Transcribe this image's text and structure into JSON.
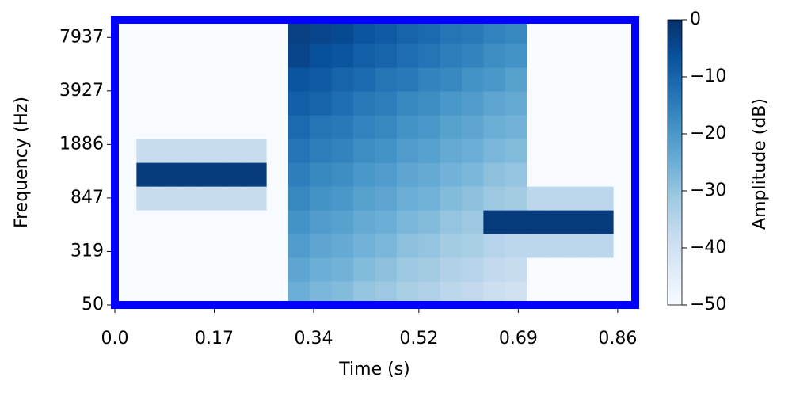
{
  "chart_data": {
    "type": "heatmap",
    "xlabel": "Time (s)",
    "ylabel": "Frequency (Hz)",
    "colorbar_label": "Amplitude (dB)",
    "xlim": [
      0,
      0.89
    ],
    "xticks": [
      {
        "value": 0,
        "label": "0.0"
      },
      0.17,
      0.34,
      0.52,
      0.69,
      0.86
    ],
    "ylim": [
      0,
      5.33
    ],
    "yticks": [
      {
        "value": 0,
        "label": "50"
      },
      {
        "value": 1,
        "label": "319"
      },
      {
        "value": 2,
        "label": "847"
      },
      {
        "value": 3,
        "label": "1886"
      },
      {
        "value": 4,
        "label": "3927"
      },
      {
        "value": 5,
        "label": "7937"
      }
    ],
    "zlim": [
      -50,
      0
    ],
    "zticks": [
      {
        "value": 0,
        "label": "0"
      },
      {
        "value": -10,
        "label": "−10"
      },
      {
        "value": -20,
        "label": "−20"
      },
      {
        "value": -30,
        "label": "−30"
      },
      {
        "value": -40,
        "label": "−40"
      },
      {
        "value": -50,
        "label": "−50"
      }
    ],
    "colormap": [
      "#f7fbff",
      "#deebf7",
      "#c6dbef",
      "#9ecae1",
      "#6baed6",
      "#4292c6",
      "#2171b5",
      "#08519c",
      "#08306b"
    ],
    "frame_color": "#0000ff",
    "z": [
      [
        -50,
        -50,
        -50,
        -50,
        -50,
        -50,
        -50,
        -50,
        -25,
        -27,
        -28,
        -30,
        -31,
        -33,
        -34,
        -36,
        -37,
        -39,
        -40,
        -50,
        -50,
        -50,
        -50,
        -50
      ],
      [
        -50,
        -50,
        -50,
        -50,
        -50,
        -50,
        -50,
        -50,
        -23,
        -25,
        -26,
        -28,
        -29,
        -31,
        -32,
        -34,
        -35,
        -37,
        -38,
        -50,
        -50,
        -50,
        -50,
        -50
      ],
      [
        -50,
        -50,
        -50,
        -50,
        -50,
        -50,
        -50,
        -50,
        -21,
        -23,
        -24,
        -26,
        -27,
        -29,
        -30,
        -32,
        -33,
        -35,
        -36,
        -36,
        -36,
        -36,
        -36,
        -50
      ],
      [
        -50,
        -50,
        -50,
        -50,
        -50,
        -50,
        -50,
        -50,
        -19,
        -21,
        -22,
        -24,
        -25,
        -27,
        -28,
        -30,
        -31,
        -2,
        -2,
        -2,
        -2,
        -2,
        -2,
        -50
      ],
      [
        -50,
        -38,
        -38,
        -38,
        -38,
        -38,
        -38,
        -50,
        -17,
        -19,
        -20,
        -22,
        -23,
        -25,
        -26,
        -28,
        -29,
        -31,
        -32,
        -36,
        -36,
        -36,
        -36,
        -50
      ],
      [
        -50,
        -2,
        -2,
        -2,
        -2,
        -2,
        -2,
        -50,
        -15,
        -17,
        -18,
        -20,
        -21,
        -23,
        -24,
        -26,
        -27,
        -29,
        -30,
        -50,
        -50,
        -50,
        -50,
        -50
      ],
      [
        -50,
        -38,
        -38,
        -38,
        -38,
        -38,
        -38,
        -50,
        -13,
        -15,
        -16,
        -18,
        -19,
        -21,
        -22,
        -24,
        -25,
        -27,
        -28,
        -50,
        -50,
        -50,
        -50,
        -50
      ],
      [
        -50,
        -50,
        -50,
        -50,
        -50,
        -50,
        -50,
        -50,
        -11,
        -13,
        -14,
        -16,
        -17,
        -19,
        -20,
        -22,
        -23,
        -25,
        -26,
        -50,
        -50,
        -50,
        -50,
        -50
      ],
      [
        -50,
        -50,
        -50,
        -50,
        -50,
        -50,
        -50,
        -50,
        -9,
        -10,
        -12,
        -14,
        -15,
        -17,
        -18,
        -20,
        -21,
        -23,
        -24,
        -50,
        -50,
        -50,
        -50,
        -50
      ],
      [
        -50,
        -50,
        -50,
        -50,
        -50,
        -50,
        -50,
        -50,
        -7,
        -8,
        -10,
        -11,
        -13,
        -14,
        -16,
        -17,
        -19,
        -20,
        -22,
        -50,
        -50,
        -50,
        -50,
        -50
      ],
      [
        -50,
        -50,
        -50,
        -50,
        -50,
        -50,
        -50,
        -50,
        -4,
        -6,
        -7,
        -9,
        -10,
        -12,
        -13,
        -15,
        -16,
        -18,
        -19,
        -50,
        -50,
        -50,
        -50,
        -50
      ],
      [
        -50,
        -50,
        -50,
        -50,
        -50,
        -50,
        -50,
        -50,
        -3,
        -4,
        -5,
        -7,
        -8,
        -10,
        -11,
        -13,
        -14,
        -16,
        -17,
        -50,
        -50,
        -50,
        -50,
        -50
      ]
    ]
  }
}
